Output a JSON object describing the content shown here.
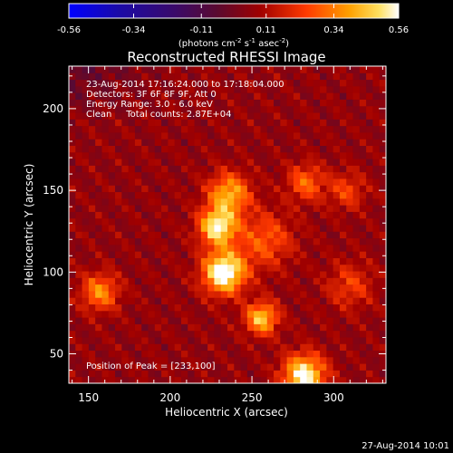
{
  "chart_data": {
    "type": "heatmap",
    "title": "Reconstructed RHESSI Image",
    "colorbar": {
      "min": -0.56,
      "max": 0.56,
      "ticks": [
        "-0.56",
        "-0.34",
        "-0.11",
        "0.11",
        "0.34",
        "0.56"
      ],
      "unit_prefix": "(photons cm",
      "unit_mid1": "s",
      "unit_mid2": "asec",
      "unit_suffix": ")",
      "exp1": "-2",
      "exp2": "-1",
      "exp3": "-2"
    },
    "xlabel": "Heliocentric X (arcsec)",
    "ylabel": "Heliocentric Y (arcsec)",
    "xlim": [
      138,
      332
    ],
    "ylim": [
      32,
      226
    ],
    "xticks": [
      150,
      200,
      250,
      300
    ],
    "yticks": [
      50,
      100,
      150,
      200
    ],
    "annotations": [
      "23-Aug-2014 17:16:24.000 to 17:18:04.000",
      "Detectors: 3F 6F 8F 9F, Att 0",
      "Energy Range: 3.0 - 6.0 keV",
      "Clean     Total counts: 2.87E+04"
    ],
    "peak_label": "Position of Peak = [233,100]",
    "peak": [
      233,
      100
    ],
    "sources": [
      {
        "x": 233,
        "y": 100,
        "intensity": 0.56,
        "sigma": 9
      },
      {
        "x": 229,
        "y": 128,
        "intensity": 0.48,
        "sigma": 8
      },
      {
        "x": 236,
        "y": 148,
        "intensity": 0.36,
        "sigma": 9
      },
      {
        "x": 256,
        "y": 72,
        "intensity": 0.4,
        "sigma": 7
      },
      {
        "x": 282,
        "y": 37,
        "intensity": 0.5,
        "sigma": 9
      },
      {
        "x": 157,
        "y": 88,
        "intensity": 0.3,
        "sigma": 8
      },
      {
        "x": 283,
        "y": 155,
        "intensity": 0.24,
        "sigma": 8
      },
      {
        "x": 308,
        "y": 150,
        "intensity": 0.18,
        "sigma": 8
      },
      {
        "x": 310,
        "y": 92,
        "intensity": 0.17,
        "sigma": 10
      },
      {
        "x": 258,
        "y": 120,
        "intensity": 0.22,
        "sigma": 12
      }
    ]
  },
  "footer_timestamp": "27-Aug-2014 10:01"
}
